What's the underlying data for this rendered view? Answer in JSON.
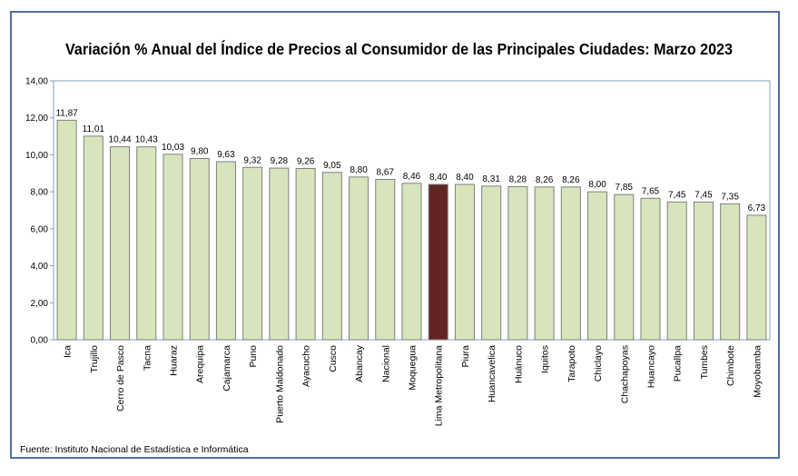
{
  "chart_data": {
    "type": "bar",
    "title": "Variación % Anual del Índice de Precios al Consumidor de las Principales Ciudades: Marzo 2023",
    "categories": [
      "Ica",
      "Trujillo",
      "Cerro de Pasco",
      "Tacna",
      "Huaraz",
      "Arequipa",
      "Cajamarca",
      "Puno",
      "Puerto Maldonado",
      "Ayacucho",
      "Cusco",
      "Abancay",
      "Nacional",
      "Moquegua",
      "Lima Metropolitana",
      "Piura",
      "Huancavelica",
      "Huánuco",
      "Iquitos",
      "Tarapoto",
      "Chiclayo",
      "Chachapoyas",
      "Huancayo",
      "Pucallpa",
      "Tumbes",
      "Chimbote",
      "Moyobamba"
    ],
    "values": [
      11.87,
      11.01,
      10.44,
      10.43,
      10.03,
      9.8,
      9.63,
      9.32,
      9.28,
      9.26,
      9.05,
      8.8,
      8.67,
      8.46,
      8.4,
      8.4,
      8.31,
      8.28,
      8.26,
      8.26,
      8.0,
      7.85,
      7.65,
      7.45,
      7.45,
      7.35,
      6.73
    ],
    "value_labels": [
      "11,87",
      "11,01",
      "10,44",
      "10,43",
      "10,03",
      "9,80",
      "9,63",
      "9,32",
      "9,28",
      "9,26",
      "9,05",
      "8,80",
      "8,67",
      "8,46",
      "8,40",
      "8,40",
      "8,31",
      "8,28",
      "8,26",
      "8,26",
      "8,00",
      "7,85",
      "7,65",
      "7,45",
      "7,45",
      "7,35",
      "6,73"
    ],
    "highlight": "Lima Metropolitana",
    "ylim": [
      0,
      14
    ],
    "yticks": [
      "0,00",
      "2,00",
      "4,00",
      "6,00",
      "8,00",
      "10,00",
      "12,00",
      "14,00"
    ],
    "xlabel": "",
    "ylabel": "",
    "grid": false,
    "legend": "none",
    "colors": {
      "bar": "#d8e4bc",
      "highlight": "#632523",
      "bar_border": "#7f7f7f",
      "axis": "#8aa0c0",
      "frame": "#4f6fa5"
    }
  },
  "source": "Fuente: Instituto Nacional de Estadística e Informática"
}
